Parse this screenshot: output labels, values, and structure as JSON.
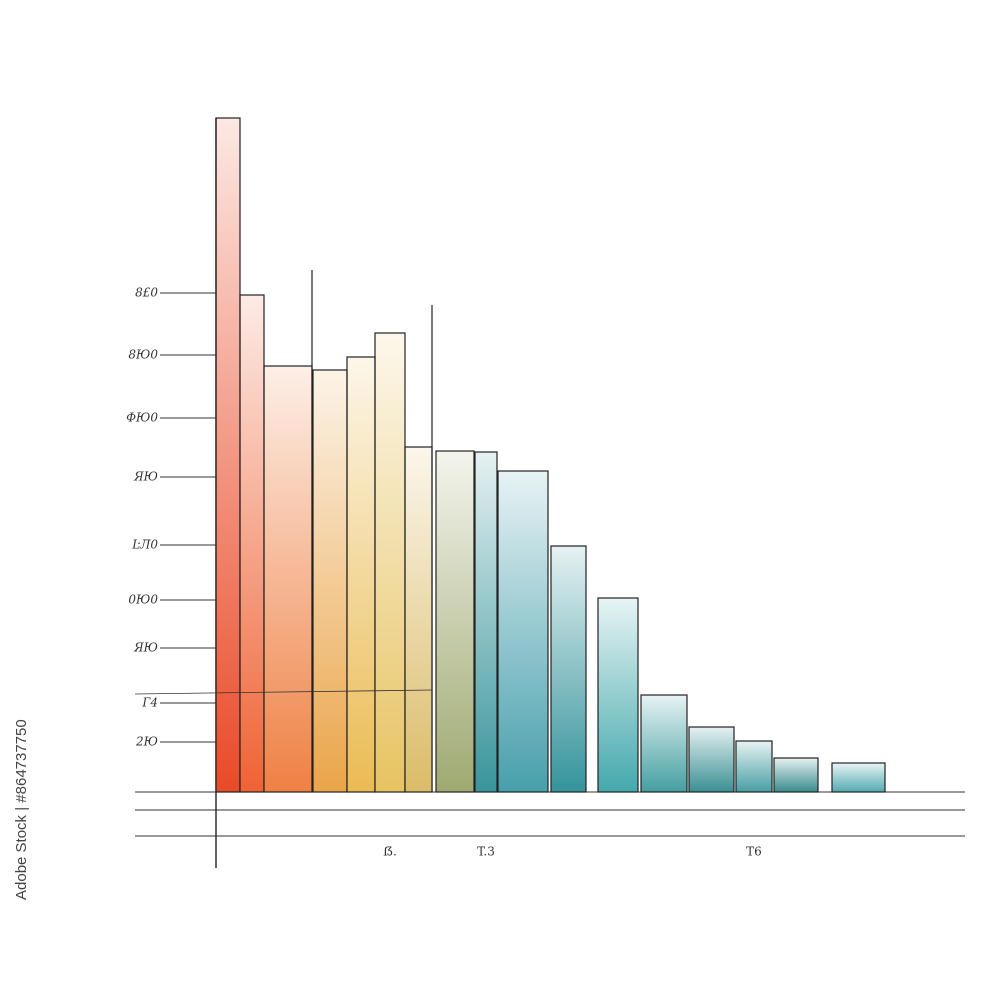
{
  "watermark": "Adobe Stock | #864737750",
  "chart_data": {
    "type": "bar",
    "categories": [
      null,
      null,
      null,
      null,
      null,
      "ẞ.",
      null,
      null,
      "T.3",
      null,
      null,
      null,
      null,
      null,
      "T6",
      null,
      null
    ],
    "values": [
      674,
      497,
      426,
      422,
      435,
      459,
      345,
      341,
      340,
      321,
      246,
      194,
      97,
      65,
      51,
      34,
      29
    ],
    "colors": [
      "#e8401c",
      "#ee5a2a",
      "#ee7a3a",
      "#e9a040",
      "#e9b84a",
      "#e6c05a",
      "#d9b860",
      "#9aa56a",
      "#2e8f95",
      "#3d9aa8",
      "#2a8e96",
      "#3aa4a8",
      "#3a9a9c",
      "#2f8a8e",
      "#3d9a9e",
      "#2f8688",
      "#4aa6ac"
    ],
    "ylim": [
      0,
      700
    ],
    "yticks": [
      {
        "value": 499,
        "label": "8£0"
      },
      {
        "value": 437,
        "label": "8Ю0"
      },
      {
        "value": 374,
        "label": "ФЮ0"
      },
      {
        "value": 315,
        "label": "ЯЮ"
      },
      {
        "value": 247,
        "label": "ĿЛ0"
      },
      {
        "value": 192,
        "label": "0Ю0"
      },
      {
        "value": 144,
        "label": "ЯЮ"
      },
      {
        "value": 89,
        "label": "Г4"
      },
      {
        "value": 50,
        "label": "2Ю"
      }
    ]
  }
}
